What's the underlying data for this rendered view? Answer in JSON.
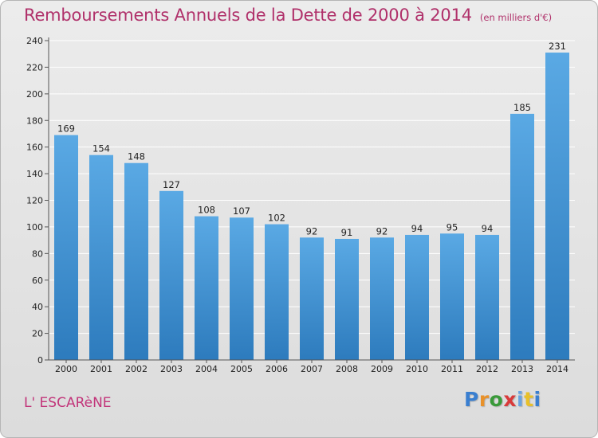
{
  "header": {
    "title": "Remboursements Annuels de la Dette de 2000 à 2014",
    "subtitle": "(en milliers d'€)"
  },
  "footer": {
    "commune": "L' ESCARèNE",
    "logo": [
      "P",
      "r",
      "o",
      "x",
      "i",
      "t",
      "i"
    ]
  },
  "colors": {
    "title": "#b0306a",
    "bar_top": "#5aa9e4",
    "bar_bottom": "#2d7bbd",
    "grid": "#ffffff"
  },
  "chart_data": {
    "type": "bar",
    "title": "Remboursements Annuels de la Dette de 2000 à 2014",
    "xlabel": "",
    "ylabel": "(en milliers d'€)",
    "categories": [
      "2000",
      "2001",
      "2002",
      "2003",
      "2004",
      "2005",
      "2006",
      "2007",
      "2008",
      "2009",
      "2010",
      "2011",
      "2012",
      "2013",
      "2014"
    ],
    "values": [
      169,
      154,
      148,
      127,
      108,
      107,
      102,
      92,
      91,
      92,
      94,
      95,
      94,
      185,
      231
    ],
    "ylim": [
      0,
      240
    ],
    "yticks": [
      0,
      20,
      40,
      60,
      80,
      100,
      120,
      140,
      160,
      180,
      200,
      220,
      240
    ],
    "grid": true
  }
}
